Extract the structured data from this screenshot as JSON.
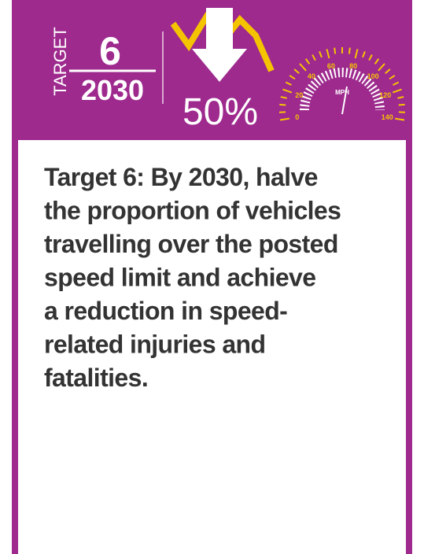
{
  "header": {
    "vertical_label": "TARGET",
    "number": "6",
    "year": "2030",
    "reduction": "50%",
    "gauge": {
      "labels": [
        "0",
        "20",
        "40",
        "60",
        "80",
        "100",
        "120",
        "140"
      ],
      "unit": "MPH"
    }
  },
  "body": {
    "lines": [
      "Target 6: By 2030, halve",
      "the proportion of vehicles",
      "travelling over the posted",
      "speed limit and achieve",
      "a reduction in speed-",
      "related injuries and",
      "fatalities."
    ]
  }
}
